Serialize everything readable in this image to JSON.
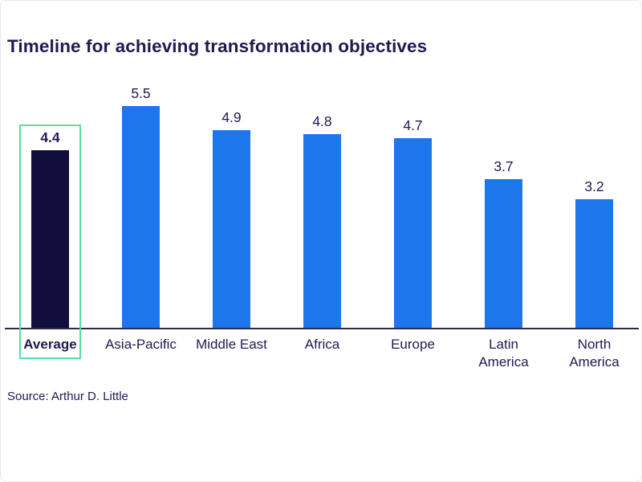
{
  "chart": {
    "title": "Timeline for achieving transformation objectives",
    "source": "Source: Arthur D. Little",
    "colors": {
      "text_navy": "#1f1a50",
      "bar_blue": "#1e76ec",
      "bar_dark_navy": "#120e3c",
      "highlight_green": "#54e09e",
      "axis_line": "#2b2950"
    }
  },
  "chart_data": {
    "type": "bar",
    "title": "Timeline for achieving transformation objectives",
    "categories": [
      "Average",
      "Asia-Pacific",
      "Middle East",
      "Africa",
      "Europe",
      "Latin America",
      "North America"
    ],
    "values": [
      4.4,
      5.5,
      4.9,
      4.8,
      4.7,
      3.7,
      3.2
    ],
    "value_labels_shown": true,
    "axis": {
      "y_axis_visible": false,
      "x_baseline_visible": true,
      "grid": false
    },
    "implied_value_range": [
      0,
      6
    ],
    "highlighted_category": "Average",
    "source": "Source: Arthur D. Little",
    "bars": [
      {
        "label": "Average",
        "value_text": "4.4",
        "value": 4.4,
        "color": "#120e3c",
        "highlighted": true,
        "wrap": false
      },
      {
        "label": "Asia-Pacific",
        "value_text": "5.5",
        "value": 5.5,
        "color": "#1e76ec",
        "highlighted": false,
        "wrap": false
      },
      {
        "label": "Middle East",
        "value_text": "4.9",
        "value": 4.9,
        "color": "#1e76ec",
        "highlighted": false,
        "wrap": false
      },
      {
        "label": "Africa",
        "value_text": "4.8",
        "value": 4.8,
        "color": "#1e76ec",
        "highlighted": false,
        "wrap": false
      },
      {
        "label": "Europe",
        "value_text": "4.7",
        "value": 4.7,
        "color": "#1e76ec",
        "highlighted": false,
        "wrap": false
      },
      {
        "label": "Latin America",
        "value_text": "3.7",
        "value": 3.7,
        "color": "#1e76ec",
        "highlighted": false,
        "wrap": true
      },
      {
        "label": "North America",
        "value_text": "3.2",
        "value": 3.2,
        "color": "#1e76ec",
        "highlighted": false,
        "wrap": true
      }
    ]
  }
}
